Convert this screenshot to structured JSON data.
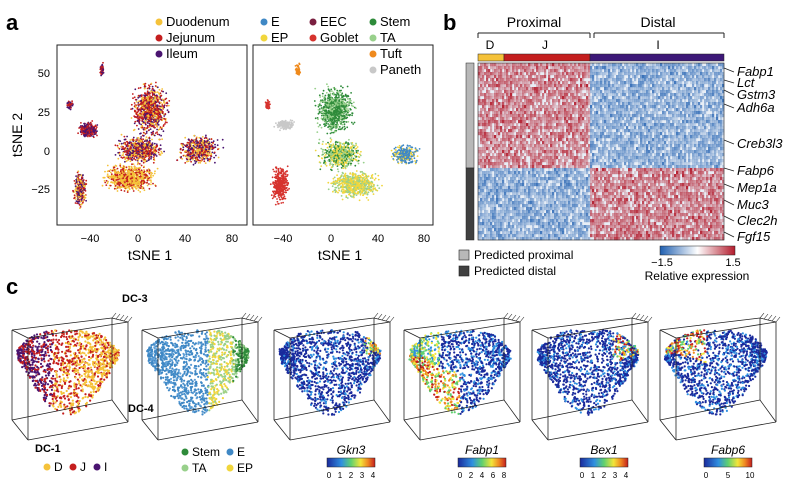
{
  "panels": {
    "a": {
      "label": "a",
      "left_legend": [
        {
          "name": "Duodenum",
          "color": "#f5c23a"
        },
        {
          "name": "Jejunum",
          "color": "#c41e1e"
        },
        {
          "name": "Ileum",
          "color": "#4a1470"
        }
      ],
      "right_legend": [
        {
          "name": "E",
          "color": "#3f88c5"
        },
        {
          "name": "EP",
          "color": "#f1d63c"
        },
        {
          "name": "EEC",
          "color": "#7a2040"
        },
        {
          "name": "Goblet",
          "color": "#d6332e"
        },
        {
          "name": "Stem",
          "color": "#2e8b3a"
        },
        {
          "name": "TA",
          "color": "#98d08b"
        },
        {
          "name": "Tuft",
          "color": "#ef8a1d"
        },
        {
          "name": "Paneth",
          "color": "#c8c8c8"
        }
      ],
      "ylabel": "tSNE 2",
      "xlabel": "tSNE 1",
      "xticks": [
        "−40",
        "0",
        "40",
        "80"
      ],
      "yticks": [
        "50",
        "25",
        "0",
        "−25"
      ]
    },
    "b": {
      "label": "b",
      "top_groups": [
        "Proximal",
        "Distal"
      ],
      "segments": [
        {
          "name": "D",
          "color": "#f5c23a"
        },
        {
          "name": "J",
          "color": "#c41e1e"
        },
        {
          "name": "I",
          "color": "#3d1878"
        }
      ],
      "genes": [
        "Fabp1",
        "Lct",
        "Gstm3",
        "Adh6a",
        "Creb3l3",
        "Fabp6",
        "Mep1a",
        "Muc3",
        "Clec2h",
        "Fgf15"
      ],
      "predicted_legend": [
        {
          "name": "Predicted proximal",
          "color": "#b8b8b8"
        },
        {
          "name": "Predicted distal",
          "color": "#404040"
        }
      ],
      "colorbar": {
        "min": "−1.5",
        "max": "1.5",
        "label": "Relative expression"
      }
    },
    "c": {
      "label": "c",
      "axes": {
        "dc1": "DC-1",
        "dc3": "DC-3",
        "dc4": "DC-4"
      },
      "legend1": [
        {
          "name": "D",
          "color": "#f5c23a"
        },
        {
          "name": "J",
          "color": "#c41e1e"
        },
        {
          "name": "I",
          "color": "#4a1470"
        }
      ],
      "legend2": [
        {
          "name": "Stem",
          "color": "#2e8b3a"
        },
        {
          "name": "E",
          "color": "#3f88c5"
        },
        {
          "name": "TA",
          "color": "#98d08b"
        },
        {
          "name": "EP",
          "color": "#f1d63c"
        }
      ],
      "gene_plots": [
        {
          "gene": "Gkn3",
          "ticks": [
            "0",
            "1",
            "2",
            "3",
            "4"
          ]
        },
        {
          "gene": "Fabp1",
          "ticks": [
            "0",
            "2",
            "4",
            "6",
            "8"
          ]
        },
        {
          "gene": "Bex1",
          "ticks": [
            "0",
            "1",
            "2",
            "3",
            "4"
          ]
        },
        {
          "gene": "Fabp6",
          "ticks": [
            "0",
            "5",
            "10"
          ]
        }
      ]
    }
  }
}
